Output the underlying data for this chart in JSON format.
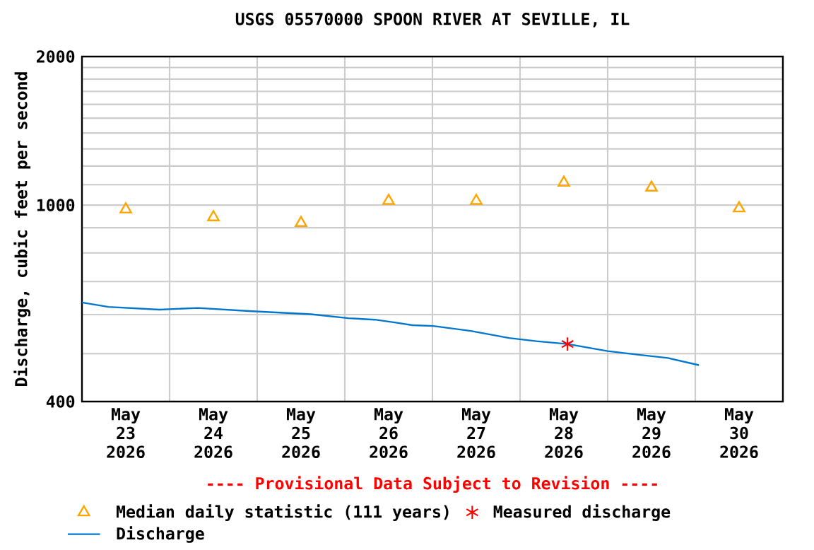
{
  "chart_data": {
    "type": "line",
    "title": "USGS 05570000 SPOON RIVER AT SEVILLE, IL",
    "ylabel": "Discharge, cubic feet per second",
    "annotations": [
      "---- Provisional Data Subject to Revision ----"
    ],
    "log": "y",
    "grid": true,
    "legend": "bottom",
    "xlim": [
      "2026-05-23T00:00",
      "2026-05-31T00:00"
    ],
    "xticks": [
      {
        "value": "2026-05-23T12:00",
        "label": "May 23 2026"
      },
      {
        "value": "2026-05-24T12:00",
        "label": "May 24 2026"
      },
      {
        "value": "2026-05-25T12:00",
        "label": "May 25 2026"
      },
      {
        "value": "2026-05-26T12:00",
        "label": "May 26 2026"
      },
      {
        "value": "2026-05-27T12:00",
        "label": "May 27 2026"
      },
      {
        "value": "2026-05-28T12:00",
        "label": "May 28 2026"
      },
      {
        "value": "2026-05-29T12:00",
        "label": "May 29 2026"
      },
      {
        "value": "2026-05-30T12:00",
        "label": "May 30 2026"
      },
      {
        "value": "2026-05-24T00:00",
        "label": null
      },
      {
        "value": "2026-05-25T00:00",
        "label": null
      },
      {
        "value": "2026-05-26T00:00",
        "label": null
      },
      {
        "value": "2026-05-27T00:00",
        "label": null
      },
      {
        "value": "2026-05-28T00:00",
        "label": null
      },
      {
        "value": "2026-05-29T00:00",
        "label": null
      },
      {
        "value": "2026-05-30T00:00",
        "label": null
      }
    ],
    "ylim": [
      400,
      2000
    ],
    "yticks": [
      400,
      {
        "value": 500,
        "label": null
      },
      {
        "value": 600,
        "label": null
      },
      {
        "value": 700,
        "label": null
      },
      {
        "value": 800,
        "label": null
      },
      {
        "value": 900,
        "label": null
      },
      1000,
      {
        "value": 1100,
        "label": null
      },
      {
        "value": 1200,
        "label": null
      },
      {
        "value": 1300,
        "label": null
      },
      {
        "value": 1400,
        "label": null
      },
      {
        "value": 1500,
        "label": null
      },
      {
        "value": 1600,
        "label": null
      },
      {
        "value": 1700,
        "label": null
      },
      {
        "value": 1800,
        "label": null
      },
      {
        "value": 1900,
        "label": null
      },
      2000
    ],
    "series": [
      {
        "name": "Median daily statistic (111 years)",
        "type": "scatter",
        "marker": "triangle",
        "color": "#ffa500",
        "x": [
          "2026-05-23T12:00",
          "2026-05-24T12:00",
          "2026-05-25T12:00",
          "2026-05-26T12:00",
          "2026-05-27T12:00",
          "2026-05-28T12:00",
          "2026-05-29T12:00",
          "2026-05-30T12:00"
        ],
        "values": [
          980,
          945,
          920,
          1020,
          1020,
          1110,
          1085,
          985
        ]
      },
      {
        "name": "Measured discharge",
        "type": "scatter",
        "marker": "cross",
        "color": "#ff0000",
        "x": [
          "2026-05-28T13:00"
        ],
        "values": [
          523
        ]
      },
      {
        "name": "Discharge",
        "marker": "none",
        "color": "#0077cc",
        "x": [
          "2026-05-23T00:00",
          "2026-05-23T07:15",
          "2026-05-23T21:15",
          "2026-05-24T07:45",
          "2026-05-24T21:45",
          "2026-05-25T14:45",
          "2026-05-26T01:00",
          "2026-05-26T08:15",
          "2026-05-26T14:00",
          "2026-05-26T18:30",
          "2026-05-27T00:15",
          "2026-05-27T10:30",
          "2026-05-27T21:00",
          "2026-05-28T04:30",
          "2026-05-28T13:00",
          "2026-05-29T00:00",
          "2026-05-29T09:00",
          "2026-05-29T16:30",
          "2026-05-30T01:00"
        ],
        "values": [
          635,
          622,
          614,
          619,
          610,
          601,
          590,
          586,
          578,
          571,
          569,
          556,
          538,
          530,
          523,
          506,
          497,
          490,
          474
        ]
      }
    ]
  }
}
